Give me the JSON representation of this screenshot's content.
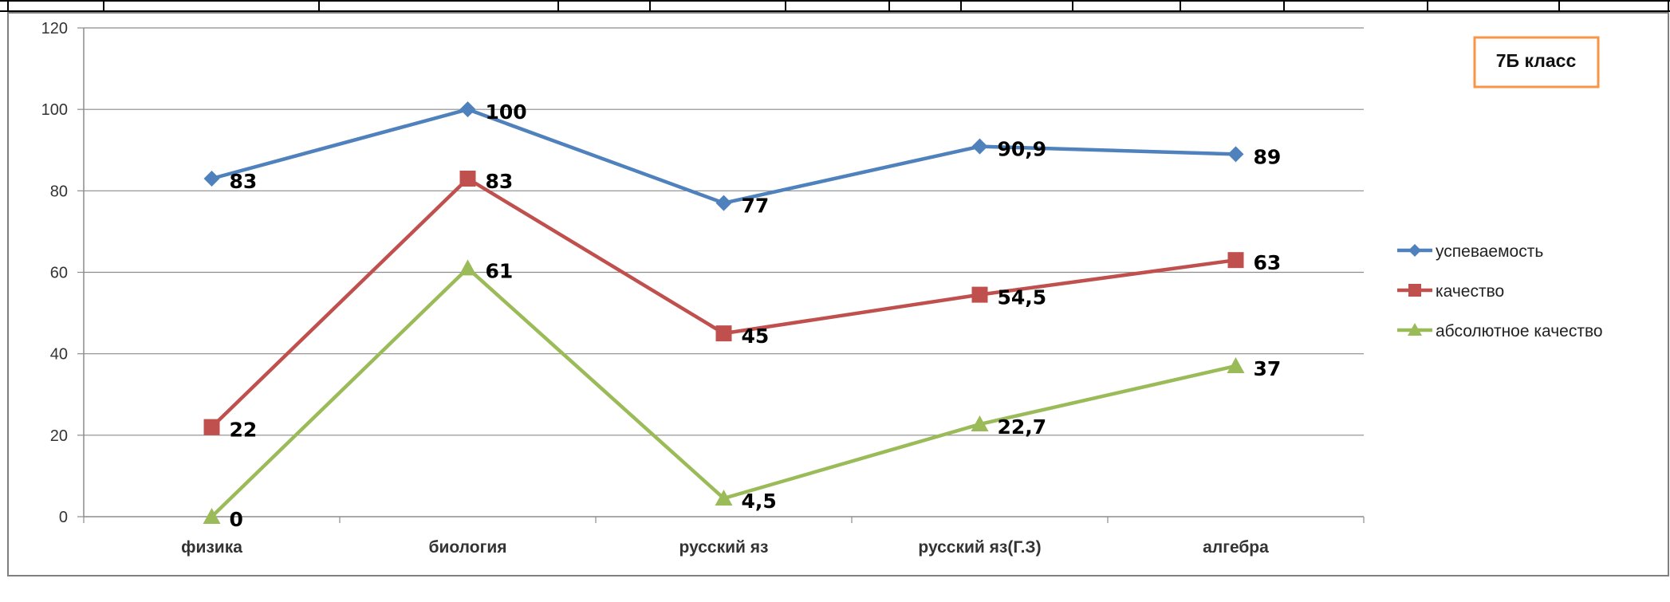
{
  "chart_data": {
    "type": "line",
    "title": "7Б класс",
    "categories": [
      "физика",
      "биология",
      "русский яз",
      "русский яз(Г.З)",
      "алгебра"
    ],
    "ylim": [
      0,
      120
    ],
    "yticks": [
      0,
      20,
      40,
      60,
      80,
      100,
      120
    ],
    "grid": true,
    "legend_position": "right",
    "series": [
      {
        "name": "успеваемость",
        "values": [
          83,
          100,
          77,
          90.9,
          89
        ],
        "labels": [
          "83",
          "100",
          "77",
          "90,9",
          "89"
        ],
        "color": "#4F81BD",
        "marker": "diamond"
      },
      {
        "name": "качество",
        "values": [
          22,
          83,
          45,
          54.5,
          63
        ],
        "labels": [
          "22",
          "83",
          "45",
          "54,5",
          "63"
        ],
        "color": "#C0504D",
        "marker": "square"
      },
      {
        "name": "абсолютное качество",
        "values": [
          0,
          61,
          4.5,
          22.7,
          37
        ],
        "labels": [
          "0",
          "61",
          "4,5",
          "22,7",
          "37"
        ],
        "color": "#9BBB59",
        "marker": "triangle"
      }
    ]
  },
  "colors": {
    "title_border": "#F79646",
    "gridline": "#8C8C8C",
    "frame": "#7F7F7F"
  }
}
